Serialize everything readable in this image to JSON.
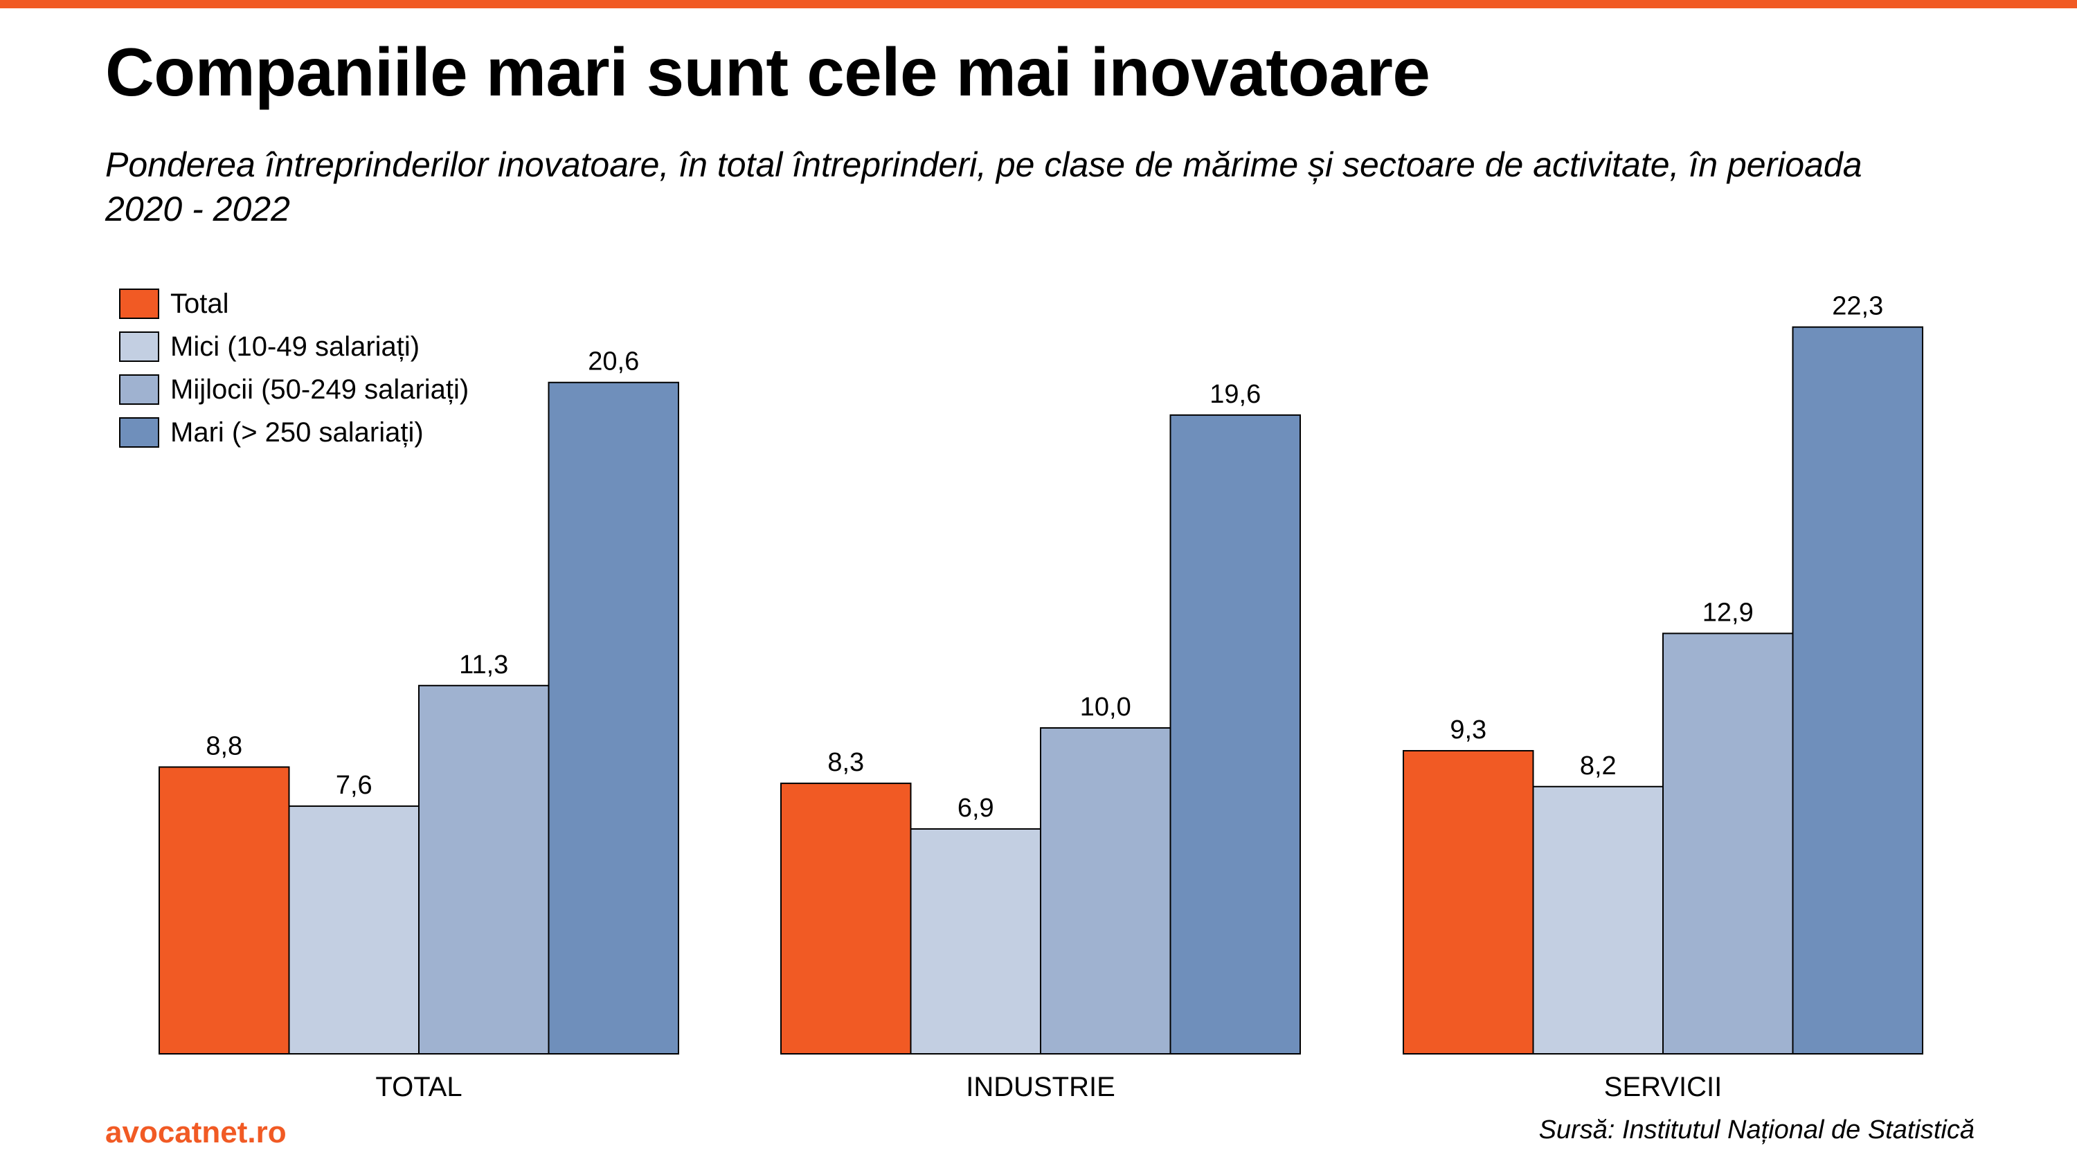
{
  "page": {
    "title": "Companiile mari sunt cele mai inovatoare",
    "subtitle": "Ponderea întreprinderilor inovatoare, în total întreprinderi, pe clase de mărime și sectoare de activitate, în perioada 2020 - 2022",
    "brand": "avocatnet.ro",
    "source": "Sursă: Institutul Național de Statistică",
    "accent_color": "#f15a24"
  },
  "chart_data": {
    "type": "bar",
    "title": "Companiile mari sunt cele mai inovatoare",
    "subtitle": "Ponderea întreprinderilor inovatoare, în total întreprinderi, pe clase de mărime și sectoare de activitate, în perioada 2020 - 2022",
    "categories": [
      "TOTAL",
      "INDUSTRIE",
      "SERVICII"
    ],
    "series": [
      {
        "name": "Total",
        "color": "#f15a24",
        "values": [
          8.8,
          8.3,
          9.3
        ],
        "labels": [
          "8,8",
          "8,3",
          "9,3"
        ]
      },
      {
        "name": "Mici (10-49 salariați)",
        "color": "#c3cfe2",
        "values": [
          7.6,
          6.9,
          8.2
        ],
        "labels": [
          "7,6",
          "6,9",
          "8,2"
        ]
      },
      {
        "name": "Mijlocii (50-249 salariați)",
        "color": "#9fb2d0",
        "values": [
          11.3,
          10.0,
          12.9
        ],
        "labels": [
          "11,3",
          "10,0",
          "12,9"
        ]
      },
      {
        "name": "Mari (> 250 salariați)",
        "color": "#6f8fbb",
        "values": [
          20.6,
          19.6,
          22.3
        ],
        "labels": [
          "20,6",
          "19,6",
          "22,3"
        ]
      }
    ],
    "xlabel": "",
    "ylabel": "",
    "ylim": [
      0,
      25
    ],
    "grid": false,
    "legend_position": "top-left",
    "data_labels": true
  }
}
